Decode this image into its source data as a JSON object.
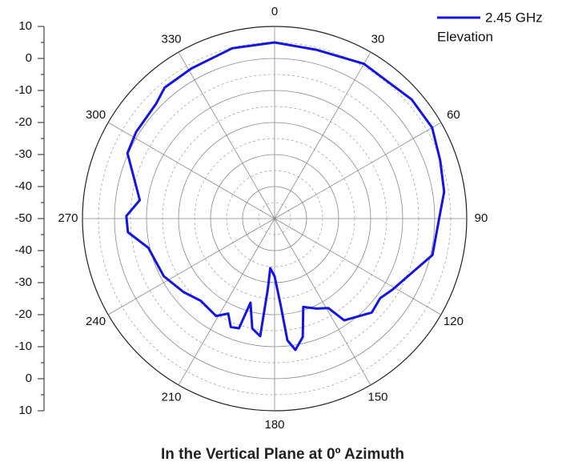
{
  "chart_data": {
    "type": "polar",
    "title": "In the Vertical Plane at 0º Azimuth",
    "x": [
      0,
      13.8,
      30,
      49,
      60,
      70.6,
      81,
      90.5,
      103,
      113,
      121,
      127,
      134,
      145.6,
      149,
      155,
      162,
      166.6,
      171,
      174,
      176,
      180,
      185,
      185.5,
      187,
      191.5,
      196,
      198,
      202,
      206,
      211,
      222,
      231,
      242.5,
      257,
      264.7,
      271,
      277.8,
      294,
      302,
      314,
      320,
      331,
      346
    ],
    "series": [
      {
        "name": "2.45 GHz",
        "color": "#1414e6",
        "values": [
          5,
          4.3,
          5.8,
          6.7,
          6.8,
          4.8,
          3.6,
          1.3,
          0.6,
          -4.5,
          -7,
          -8.7,
          -7.8,
          -11.5,
          -17.4,
          -19,
          -21,
          -12,
          -8.5,
          -11.8,
          -23,
          -32,
          -34.5,
          -28,
          -13,
          -15,
          -22.7,
          -14,
          -13.5,
          -17,
          -14.5,
          -15.5,
          -13.5,
          -11,
          -9.5,
          -4,
          -3.7,
          -7.5,
          0.3,
          1,
          1.5,
          3.4,
          3.6,
          4.8
        ]
      }
    ],
    "legend_note": "Elevation",
    "rlim": [
      -50,
      10
    ],
    "rticks": [
      -50,
      -40,
      -30,
      -20,
      -10,
      0,
      10
    ],
    "rminor_ticks": [
      -45,
      -35,
      -25,
      -15,
      -5,
      5
    ],
    "angle_ticks": [
      0,
      30,
      60,
      90,
      120,
      150,
      180,
      210,
      240,
      270,
      300,
      330
    ],
    "grid": true
  }
}
